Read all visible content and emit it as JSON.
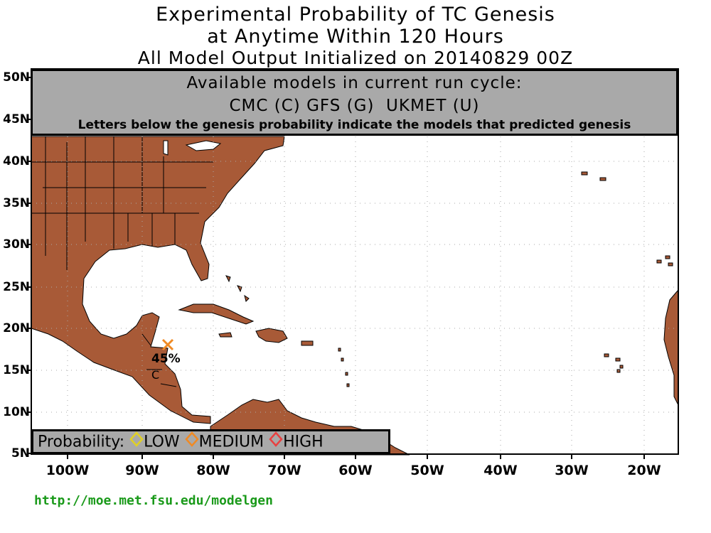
{
  "title": {
    "line1": "Experimental Probability of TC Genesis",
    "line2": "at Anytime Within 120 Hours",
    "line3": "All Model Output Initialized on 20140829 00Z"
  },
  "models_box": {
    "heading": "Available models in current run cycle:",
    "models": "CMC (C) GFS (G)  UKMET (U)",
    "note": "Letters below the genesis probability indicate the models that predicted genesis"
  },
  "lat_labels": [
    "50N",
    "45N",
    "40N",
    "35N",
    "30N",
    "25N",
    "20N",
    "15N",
    "10N",
    "5N"
  ],
  "lon_labels": [
    "100W",
    "90W",
    "80W",
    "70W",
    "60W",
    "50W",
    "40W",
    "30W",
    "20W"
  ],
  "map_extent": {
    "lon_min": -105,
    "lon_max": -15,
    "lat_min": 5,
    "lat_max": 51
  },
  "genesis_points": [
    {
      "lat": 18,
      "lon": -86,
      "probability": "45%",
      "category": "MEDIUM",
      "models": "C"
    }
  ],
  "legend": {
    "label": "Probability:",
    "items": [
      {
        "label": "LOW",
        "color": "#e0d024"
      },
      {
        "label": "MEDIUM",
        "color": "#f08a24"
      },
      {
        "label": "HIGH",
        "color": "#e84040"
      }
    ]
  },
  "url": "http://moe.met.fsu.edu/modelgen",
  "colors": {
    "land": "#a85a37",
    "ocean": "#ffffff",
    "panel": "#a9a9a9",
    "url": "#1a9a1a"
  }
}
